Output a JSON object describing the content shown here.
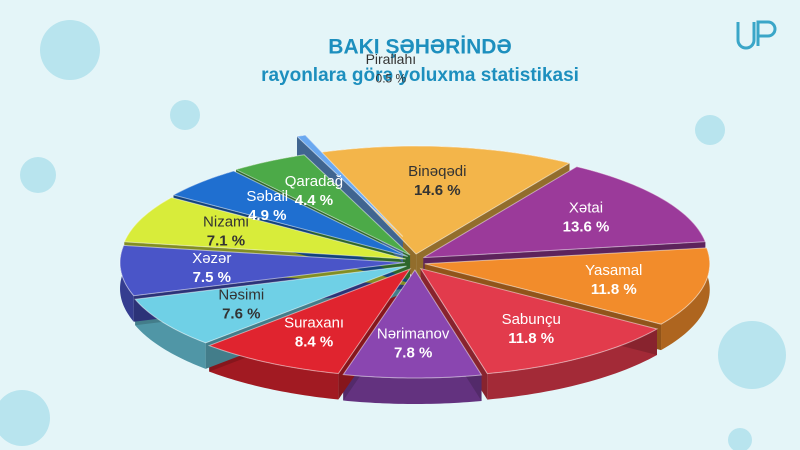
{
  "chart_data": {
    "type": "pie",
    "title": "BAKI ŞƏHƏRİNDƏ",
    "subtitle": "rayonlara görə yoluxma statistikasi",
    "categories": [
      "Binəqədi",
      "Xətai",
      "Yasamal",
      "Sabunçu",
      "Nərimanov",
      "Suraxanı",
      "Nəsimi",
      "Xəzər",
      "Nizami",
      "Səbail",
      "Qaradağ",
      "Pirallahı"
    ],
    "values": [
      14.6,
      13.6,
      11.8,
      11.8,
      7.8,
      8.4,
      7.6,
      7.5,
      7.1,
      4.9,
      4.4,
      0.5
    ],
    "value_labels": [
      "14.6 %",
      "13.6 %",
      "11.8 %",
      "11.8 %",
      "7.8 %",
      "8.4 %",
      "7.6 %",
      "7.5 %",
      "7.1 %",
      "4.9 %",
      "4.4 %",
      "0.5 %"
    ],
    "colors": [
      "#f3b54a",
      "#9b3a9a",
      "#f28c2b",
      "#e23b4c",
      "#8a46b0",
      "#e0242f",
      "#6fd0e6",
      "#4a55c8",
      "#d8ec3a",
      "#1f6fd0",
      "#4caa48",
      "#6aa8f0"
    ]
  }
}
